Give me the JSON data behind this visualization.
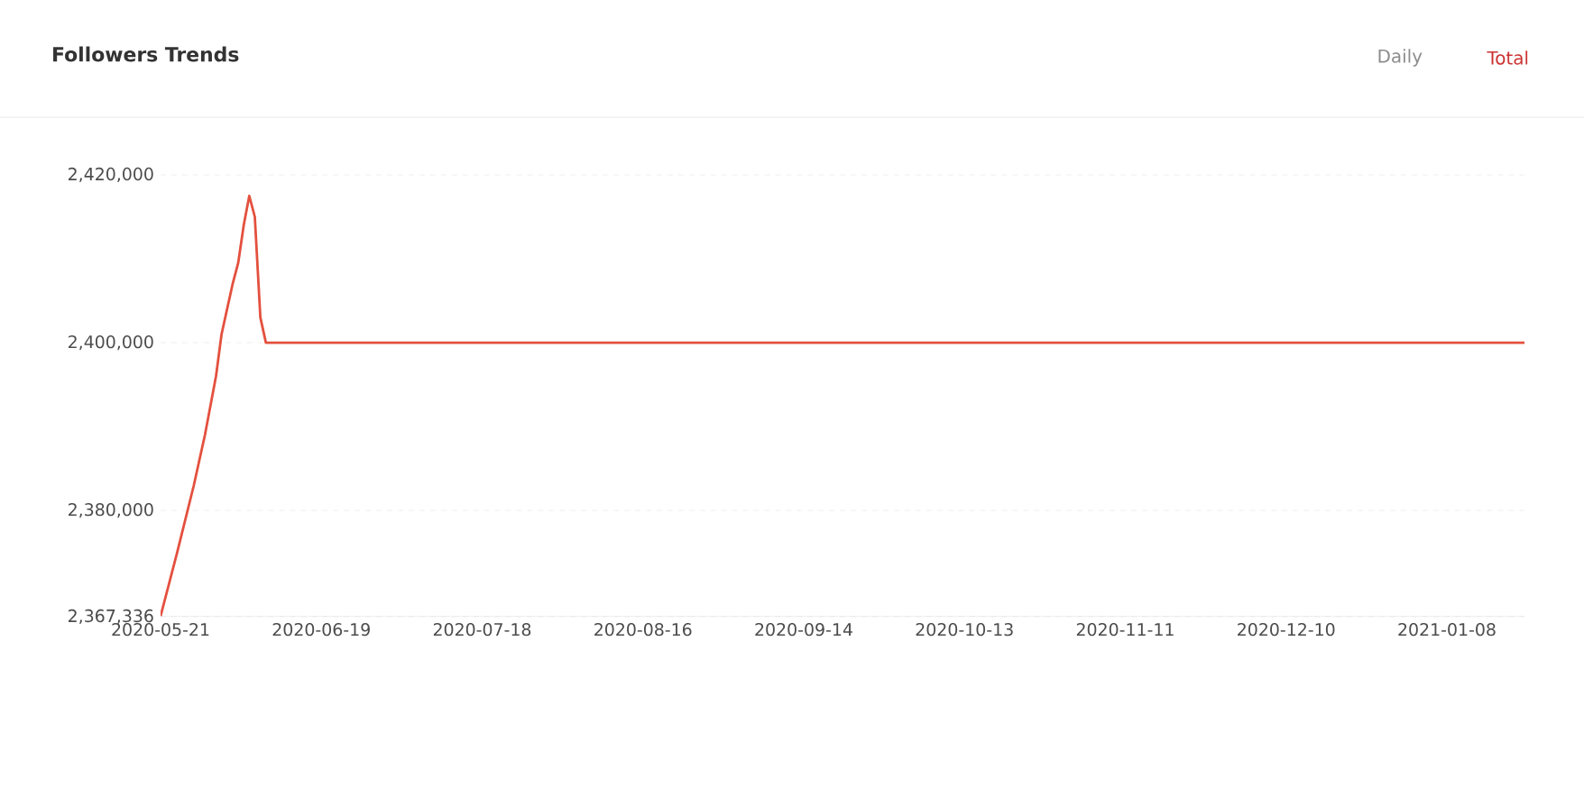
{
  "chart_data": {
    "type": "line",
    "title": "Followers Trends",
    "annotations": [
      "Daily",
      "Total"
    ],
    "x": [
      "2020-05-21",
      "2020-05-24",
      "2020-05-27",
      "2020-05-29",
      "2020-05-31",
      "2020-06-01",
      "2020-06-03",
      "2020-06-04",
      "2020-06-05",
      "2020-06-06",
      "2020-06-07",
      "2020-06-08",
      "2020-06-09",
      "2021-01-22"
    ],
    "series": [
      {
        "color": "#e4503e",
        "values": [
          2367400,
          2375000,
          2383000,
          2389000,
          2396000,
          2401000,
          2407000,
          2409500,
          2414000,
          2417500,
          2415000,
          2403000,
          2400000,
          2400000
        ]
      }
    ],
    "xlim": [
      "2020-05-21",
      "2021-01-22"
    ],
    "xticks": [
      "2020-05-21",
      "2020-06-19",
      "2020-07-18",
      "2020-08-16",
      "2020-09-14",
      "2020-10-13",
      "2020-11-11",
      "2020-12-10",
      "2021-01-08"
    ],
    "ylim": [
      2367336,
      2420000
    ],
    "yticks": [
      {
        "value": 2367336,
        "label": "2,367,336"
      },
      {
        "value": 2380000,
        "label": "2,380,000"
      },
      {
        "value": 2400000,
        "label": "2,400,000"
      },
      {
        "value": 2420000,
        "label": "2,420,000"
      }
    ],
    "grid": "y",
    "marker": "none",
    "line_style": "solid"
  }
}
